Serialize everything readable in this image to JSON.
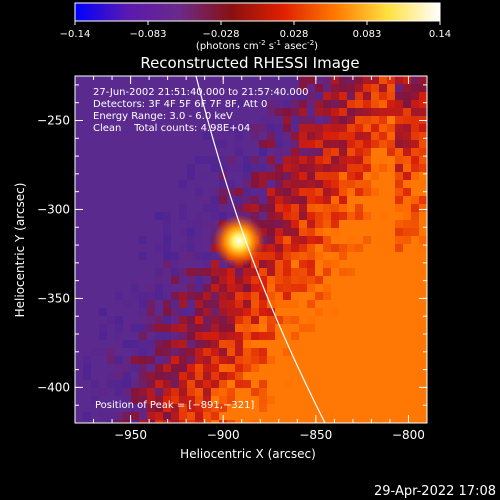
{
  "colorbar": {
    "ticks": [
      "-0.14",
      "-0.083",
      "-0.028",
      "0.028",
      "0.083",
      "0.14"
    ],
    "units_prefix": "(photons cm",
    "units_exp1": "-2",
    "units_mid": " s",
    "units_exp2": "-1",
    "units_mid2": " asec",
    "units_exp3": "-2",
    "units_suffix": ")",
    "colors": [
      "#0000ff",
      "#5a19b0",
      "#6a2a8a",
      "#8a1010",
      "#e02000",
      "#ff7a00",
      "#ffe040",
      "#ffffff"
    ]
  },
  "chart_data": {
    "type": "heatmap",
    "title": "Reconstructed RHESSI Image",
    "xlabel": "Heliocentric X (arcsec)",
    "ylabel": "Heliocentric Y (arcsec)",
    "xlim": [
      -980,
      -790
    ],
    "ylim": [
      -420,
      -225
    ],
    "x_ticks": [
      {
        "value": -950,
        "label": "−950"
      },
      {
        "value": -900,
        "label": "−900"
      },
      {
        "value": -850,
        "label": "−850"
      },
      {
        "value": -800,
        "label": "−800"
      }
    ],
    "y_ticks": [
      {
        "value": -250,
        "label": "−250"
      },
      {
        "value": -300,
        "label": "−300"
      },
      {
        "value": -350,
        "label": "−350"
      },
      {
        "value": -400,
        "label": "−400"
      }
    ],
    "colorscale_range": [
      -0.14,
      0.14
    ],
    "peak": {
      "x": -891,
      "y": -321
    },
    "annotations": [
      "27-Jun-2002 21:51:40.000 to 21:57:40.000",
      "Detectors: 3F 4F 5F 6F 7F 8F, Att 0",
      "Energy Range: 3.0 - 6.0 keV",
      "Clean    Total counts: 4.98E+04"
    ],
    "peak_label": "Position of Peak = [−891,−321]"
  },
  "footer": {
    "timestamp": "29-Apr-2022 17:08"
  }
}
